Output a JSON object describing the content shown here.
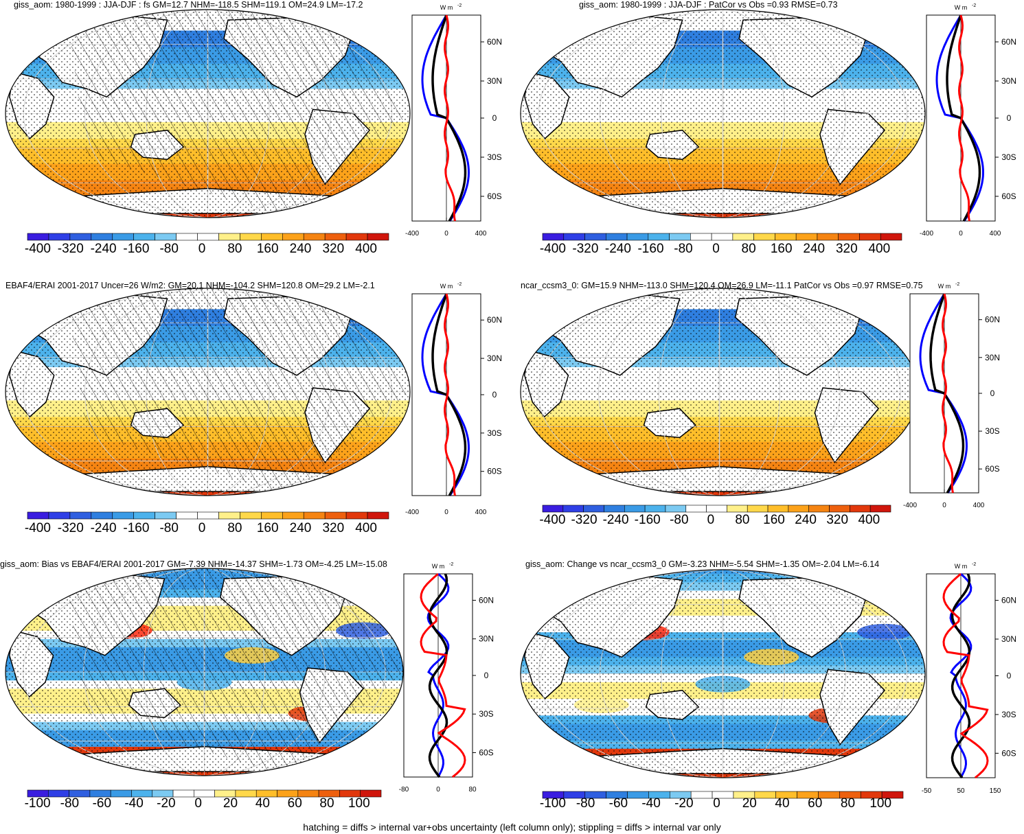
{
  "panels": [
    {
      "title": "giss_aom: 1980-1999 : JJA-DJF : fs GM=12.7 NHM=-118.5 SHM=119.1 OM=24.9 LM=-17.2",
      "zonal": {
        "unit": "W m",
        "sup": "-2",
        "xticks": [
          "-400",
          "0",
          "400"
        ],
        "lats": [
          "60N",
          "30N",
          "0",
          "30S",
          "60S"
        ]
      },
      "colorbar": {
        "labels": [
          "-400",
          "-320",
          "-240",
          "-160",
          "-80",
          "0",
          "80",
          "160",
          "240",
          "320",
          "400"
        ]
      },
      "hatch": true,
      "kind": "mean"
    },
    {
      "title": "giss_aom: 1980-1999 : JJA-DJF : PatCor vs Obs =0.93 RMSE=0.73",
      "zonal": {
        "unit": "W m",
        "sup": "-2",
        "xticks": [
          "-400",
          "0",
          "400"
        ],
        "lats": [
          "60N",
          "30N",
          "0",
          "30S",
          "60S"
        ]
      },
      "colorbar": {
        "labels": [
          "-400",
          "-320",
          "-240",
          "-160",
          "-80",
          "0",
          "80",
          "160",
          "240",
          "320",
          "400"
        ]
      },
      "hatch": false,
      "kind": "mean"
    },
    {
      "title": "EBAF4/ERAI 2001-2017 Uncer=26 W/m2: GM=20.1 NHM=-104.2 SHM=120.8 OM=29.2 LM=-2.1",
      "zonal": {
        "unit": "W m",
        "sup": "-2",
        "xticks": [
          "-400",
          "0",
          "400"
        ],
        "lats": [
          "60N",
          "30N",
          "0",
          "30S",
          "60S"
        ]
      },
      "colorbar": {
        "labels": [
          "-400",
          "-320",
          "-240",
          "-160",
          "-80",
          "0",
          "80",
          "160",
          "240",
          "320",
          "400"
        ]
      },
      "hatch": true,
      "kind": "mean"
    },
    {
      "title": "ncar_ccsm3_0: GM=15.9 NHM=-113.0 SHM=120.4 OM=26.9 LM=-11.1 PatCor vs Obs =0.97 RMSE=0.75",
      "zonal": {
        "unit": "W m",
        "sup": "-2",
        "xticks": [
          "-400",
          "0",
          "400"
        ],
        "lats": [
          "60N",
          "30N",
          "0",
          "30S",
          "60S"
        ]
      },
      "colorbar": {
        "labels": [
          "-400",
          "-320",
          "-240",
          "-160",
          "-80",
          "0",
          "80",
          "160",
          "240",
          "320",
          "400"
        ]
      },
      "hatch": false,
      "kind": "mean"
    },
    {
      "title": "giss_aom: Bias vs EBAF4/ERAI 2001-2017 GM=-7.39 NHM=-14.37 SHM=-1.73 OM=-4.25 LM=-15.08",
      "zonal": {
        "unit": "W m",
        "sup": "-2",
        "xticks": [
          "-80",
          "0",
          "80"
        ],
        "lats": [
          "60N",
          "30N",
          "0",
          "30S",
          "60S"
        ]
      },
      "colorbar": {
        "labels": [
          "-100",
          "-80",
          "-60",
          "-40",
          "-20",
          "0",
          "20",
          "40",
          "60",
          "80",
          "100"
        ]
      },
      "hatch": true,
      "kind": "diff"
    },
    {
      "title": "giss_aom: Change vs ncar_ccsm3_0 GM=-3.23 NHM=-5.54 SHM=-1.35 OM=-2.04 LM=-6.14",
      "zonal": {
        "unit": "W m",
        "sup": "-2",
        "xticks": [
          "-50",
          "50",
          "150"
        ],
        "lats": [
          "60N",
          "30N",
          "0",
          "30S",
          "60S"
        ]
      },
      "colorbar": {
        "labels": [
          "-100",
          "-80",
          "-60",
          "-40",
          "-20",
          "0",
          "20",
          "40",
          "60",
          "80",
          "100"
        ]
      },
      "hatch": false,
      "kind": "diff"
    }
  ],
  "colors": {
    "scale": [
      "#3a1de0",
      "#2f3fe6",
      "#2f5fe0",
      "#2f7fe0",
      "#3a9be6",
      "#4cb2ec",
      "#7ccaf2",
      "#ffffff",
      "#ffffff",
      "#fff08a",
      "#ffd84a",
      "#ffbe2a",
      "#fca21a",
      "#f58412",
      "#ee600e",
      "#e2380c",
      "#d0160c"
    ],
    "land": "#ffffff",
    "zonal_model": "#000000",
    "zonal_obs": "#ff0000",
    "zonal_other": "#0000ff"
  },
  "footer": "hatching = diffs > internal var+obs uncertainty (left column only); stippling = diffs > internal var only"
}
